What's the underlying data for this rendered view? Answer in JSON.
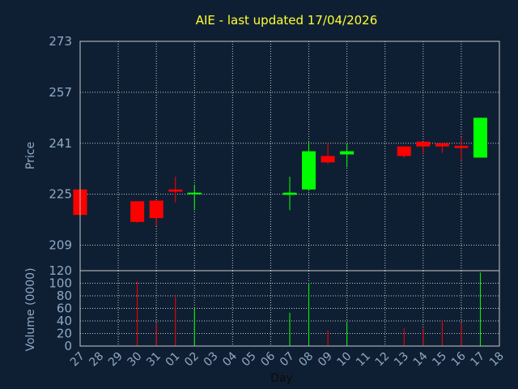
{
  "chart_data": [
    {
      "type": "candlestick",
      "title": "AIE - last updated 17/04/2026",
      "ylabel": "Price",
      "ylim": [
        201,
        273
      ],
      "yticks": [
        "273",
        "257",
        "241",
        "225",
        "209"
      ],
      "grid": true,
      "colors": {
        "up": "#00ff00",
        "down": "#ff0000"
      },
      "candles": [
        {
          "x": "27",
          "open": 226.5,
          "high": 226.5,
          "low": 218.5,
          "close": 218.5
        },
        {
          "x": "30",
          "open": 222.8,
          "high": 222.8,
          "low": 216.0,
          "close": 216.3
        },
        {
          "x": "31",
          "open": 223.0,
          "high": 223.0,
          "low": 215.0,
          "close": 217.5
        },
        {
          "x": "01",
          "open": 226.5,
          "high": 230.5,
          "low": 222.5,
          "close": 225.8
        },
        {
          "x": "02",
          "open": 225.3,
          "high": 228.0,
          "low": 220.0,
          "close": 225.5
        },
        {
          "x": "07",
          "open": 224.8,
          "high": 230.5,
          "low": 220.0,
          "close": 225.5
        },
        {
          "x": "08",
          "open": 226.5,
          "high": 241.5,
          "low": 226.0,
          "close": 238.5
        },
        {
          "x": "09",
          "open": 237.0,
          "high": 241.0,
          "low": 234.5,
          "close": 235.0
        },
        {
          "x": "10",
          "open": 237.5,
          "high": 241.0,
          "low": 233.5,
          "close": 238.5
        },
        {
          "x": "13",
          "open": 240.0,
          "high": 240.0,
          "low": 236.5,
          "close": 237.0
        },
        {
          "x": "14",
          "open": 241.5,
          "high": 241.5,
          "low": 237.5,
          "close": 240.0
        },
        {
          "x": "15",
          "open": 241.0,
          "high": 241.0,
          "low": 238.0,
          "close": 240.0
        },
        {
          "x": "16",
          "open": 240.2,
          "high": 243.0,
          "low": 235.5,
          "close": 239.5
        },
        {
          "x": "17",
          "open": 236.5,
          "high": 249.0,
          "low": 236.5,
          "close": 249.0
        }
      ]
    },
    {
      "type": "bar",
      "xlabel": "Day",
      "ylabel": "Volume (0000)",
      "ylim": [
        0,
        120
      ],
      "yticks": [
        "120",
        "100",
        "80",
        "60",
        "40",
        "20",
        "0"
      ],
      "categories": [
        "27",
        "28",
        "29",
        "30",
        "31",
        "01",
        "02",
        "03",
        "04",
        "05",
        "06",
        "07",
        "08",
        "09",
        "10",
        "11",
        "12",
        "13",
        "14",
        "15",
        "16",
        "17",
        "18"
      ],
      "values": [
        0,
        0,
        0,
        103,
        37,
        80,
        60,
        0,
        0,
        0,
        0,
        53,
        100,
        25,
        37,
        0,
        0,
        28,
        28,
        42,
        37,
        117,
        0
      ],
      "directions": [
        "down",
        "",
        "",
        "down",
        "down",
        "down",
        "up",
        "",
        "",
        "",
        "",
        "up",
        "up",
        "down",
        "up",
        "",
        "",
        "down",
        "down",
        "down",
        "down",
        "up",
        ""
      ]
    }
  ]
}
